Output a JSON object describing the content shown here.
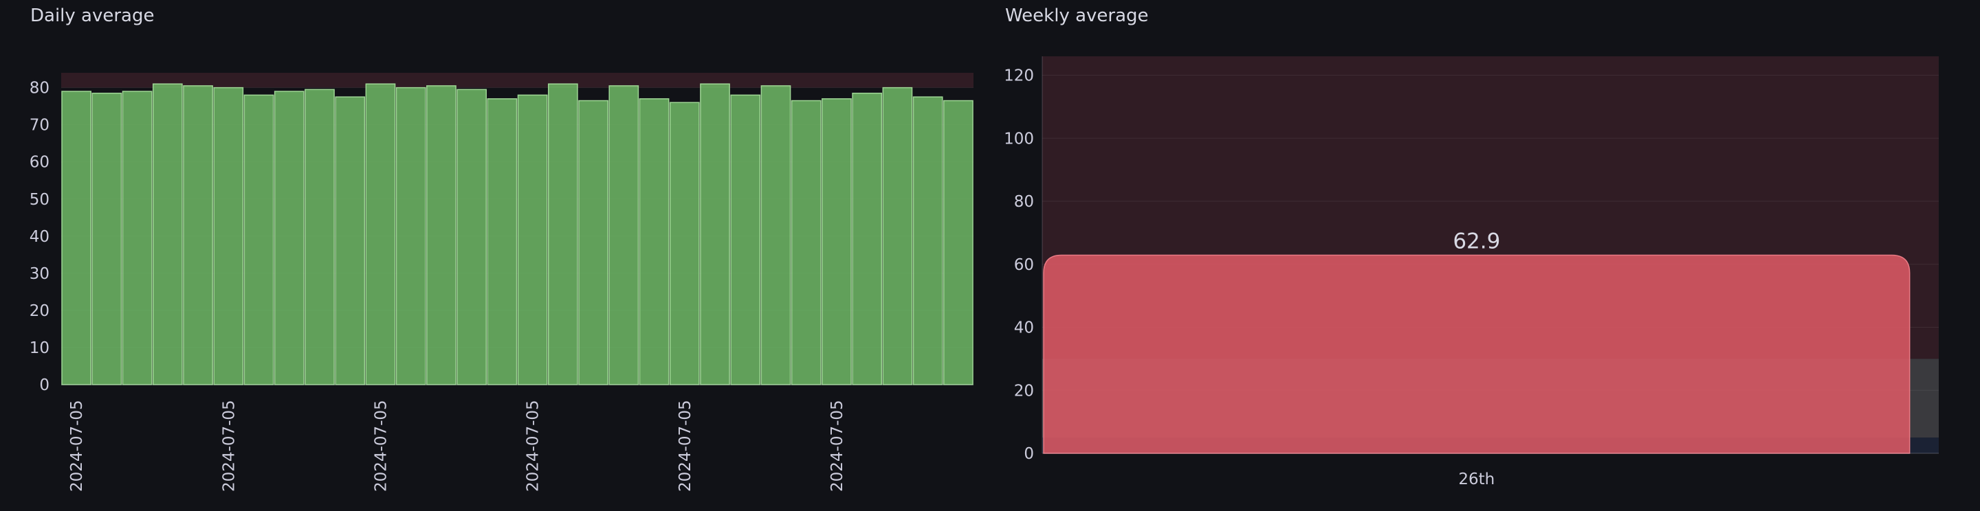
{
  "colors": {
    "background": "#111217",
    "good_bar": "#73bf69",
    "bad_bar": "#e05a66",
    "threshold_red": "#301c24",
    "threshold_grey": "#3a3a3e",
    "threshold_blue": "#1b2234",
    "axis_text": "#ccccdc",
    "bar_label": "#d8d9e4"
  },
  "chart_data": [
    {
      "type": "bar",
      "title": "Daily average",
      "ylim": [
        0,
        84
      ],
      "yticks": [
        0,
        10,
        20,
        30,
        40,
        50,
        60,
        70,
        80
      ],
      "x_tick_labels": [
        "2024-07-05",
        "2024-07-05",
        "2024-07-05",
        "2024-07-05",
        "2024-07-05",
        "2024-07-05"
      ],
      "x_tick_every": 5,
      "values": [
        79,
        78.5,
        79,
        81,
        80.5,
        80,
        78,
        79,
        79.5,
        77.5,
        81,
        80,
        80.5,
        79.5,
        77,
        78,
        81,
        76.5,
        80.5,
        77,
        76,
        81,
        78,
        80.5,
        76.5,
        77,
        78.5,
        80,
        77.5,
        76.5
      ],
      "color": "#73bf69",
      "thresholds": [
        {
          "from": 80,
          "color": "#301c24"
        }
      ]
    },
    {
      "type": "bar",
      "title": "Weekly average",
      "ylim": [
        0,
        126
      ],
      "yticks": [
        0,
        20,
        40,
        60,
        80,
        100,
        120
      ],
      "categories": [
        "26th"
      ],
      "values": [
        62.9
      ],
      "value_labels": [
        "62.9"
      ],
      "color": "#e05a66",
      "thresholds": [
        {
          "from": 0,
          "to": 5,
          "color": "#1b2234"
        },
        {
          "from": 5,
          "to": 30,
          "color": "#3a3a3e"
        },
        {
          "from": 30,
          "color": "#301c24"
        }
      ]
    }
  ]
}
